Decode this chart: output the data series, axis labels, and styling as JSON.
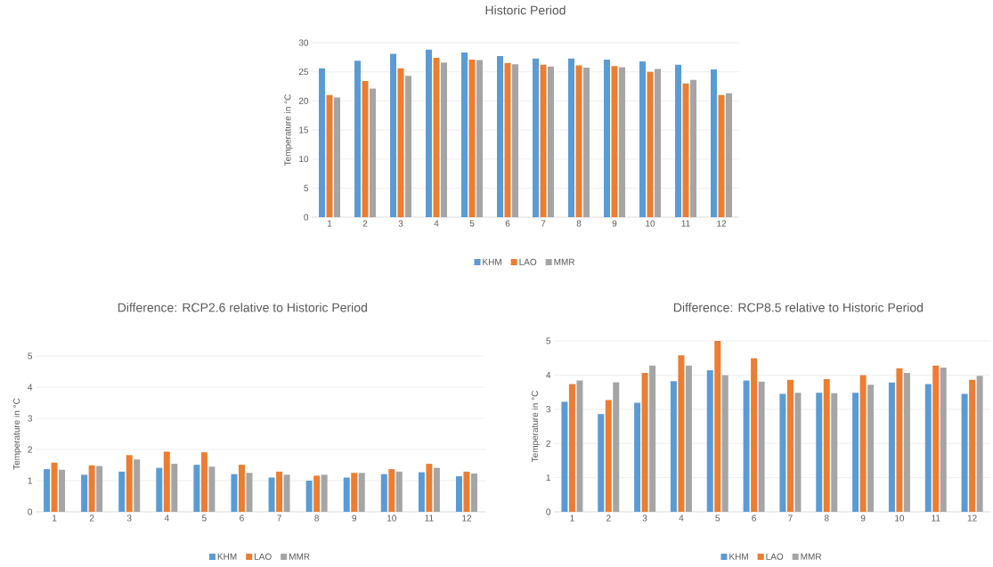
{
  "chart_data": [
    {
      "type": "bar",
      "title": "Historic Period",
      "ylabel": "Temperature in °C",
      "categories": [
        "1",
        "2",
        "3",
        "4",
        "5",
        "6",
        "7",
        "8",
        "9",
        "10",
        "11",
        "12"
      ],
      "series": [
        {
          "name": "KHM",
          "color": "#5b9bd5",
          "values": [
            25.6,
            26.9,
            28.1,
            28.8,
            28.3,
            27.7,
            27.3,
            27.3,
            27.1,
            26.8,
            26.2,
            25.4
          ]
        },
        {
          "name": "LAO",
          "color": "#ed7d31",
          "values": [
            21.0,
            23.4,
            25.6,
            27.4,
            27.1,
            26.5,
            26.2,
            26.1,
            26.0,
            25.0,
            23.0,
            21.0
          ]
        },
        {
          "name": "MMR",
          "color": "#a5a5a5",
          "values": [
            20.6,
            22.1,
            24.3,
            26.6,
            27.0,
            26.3,
            25.9,
            25.7,
            25.8,
            25.5,
            23.6,
            21.3
          ]
        }
      ],
      "ylim": [
        0,
        30
      ],
      "yticks": [
        0,
        5,
        10,
        15,
        20,
        25,
        30
      ],
      "grid": "y",
      "legend": "bottom"
    },
    {
      "type": "bar",
      "title": "Difference: RCP2.6 relative to Historic Period",
      "ylabel": "Temperature in °C",
      "categories": [
        "1",
        "2",
        "3",
        "4",
        "5",
        "6",
        "7",
        "8",
        "9",
        "10",
        "11",
        "12"
      ],
      "series": [
        {
          "name": "KHM",
          "color": "#5b9bd5",
          "values": [
            1.37,
            1.19,
            1.29,
            1.41,
            1.51,
            1.21,
            1.1,
            1.0,
            1.1,
            1.21,
            1.27,
            1.14
          ]
        },
        {
          "name": "LAO",
          "color": "#ed7d31",
          "values": [
            1.58,
            1.49,
            1.82,
            1.93,
            1.91,
            1.51,
            1.29,
            1.16,
            1.25,
            1.37,
            1.54,
            1.29
          ]
        },
        {
          "name": "MMR",
          "color": "#a5a5a5",
          "values": [
            1.35,
            1.47,
            1.68,
            1.54,
            1.45,
            1.25,
            1.19,
            1.19,
            1.25,
            1.29,
            1.41,
            1.23
          ]
        }
      ],
      "ylim": [
        0,
        5
      ],
      "yticks": [
        0,
        1,
        2,
        3,
        4,
        5
      ],
      "grid": "y",
      "legend": "bottom"
    },
    {
      "type": "bar",
      "title": "Difference: RCP8.5 relative to Historic Period",
      "ylabel": "Temperature in °C",
      "categories": [
        "1",
        "2",
        "3",
        "4",
        "5",
        "6",
        "7",
        "8",
        "9",
        "10",
        "11",
        "12"
      ],
      "series": [
        {
          "name": "KHM",
          "color": "#5b9bd5",
          "values": [
            3.22,
            2.86,
            3.19,
            3.82,
            4.14,
            3.84,
            3.45,
            3.48,
            3.48,
            3.78,
            3.74,
            3.45
          ]
        },
        {
          "name": "LAO",
          "color": "#ed7d31",
          "values": [
            3.74,
            3.27,
            4.06,
            4.58,
            5.0,
            4.49,
            3.86,
            3.88,
            4.0,
            4.2,
            4.28,
            3.86
          ]
        },
        {
          "name": "MMR",
          "color": "#a5a5a5",
          "values": [
            3.84,
            3.79,
            4.28,
            4.28,
            4.0,
            3.81,
            3.48,
            3.47,
            3.72,
            4.06,
            4.22,
            3.98
          ]
        }
      ],
      "ylim": [
        0,
        5
      ],
      "yticks": [
        0,
        1,
        2,
        3,
        4,
        5
      ],
      "grid": "y",
      "legend": "bottom"
    }
  ]
}
